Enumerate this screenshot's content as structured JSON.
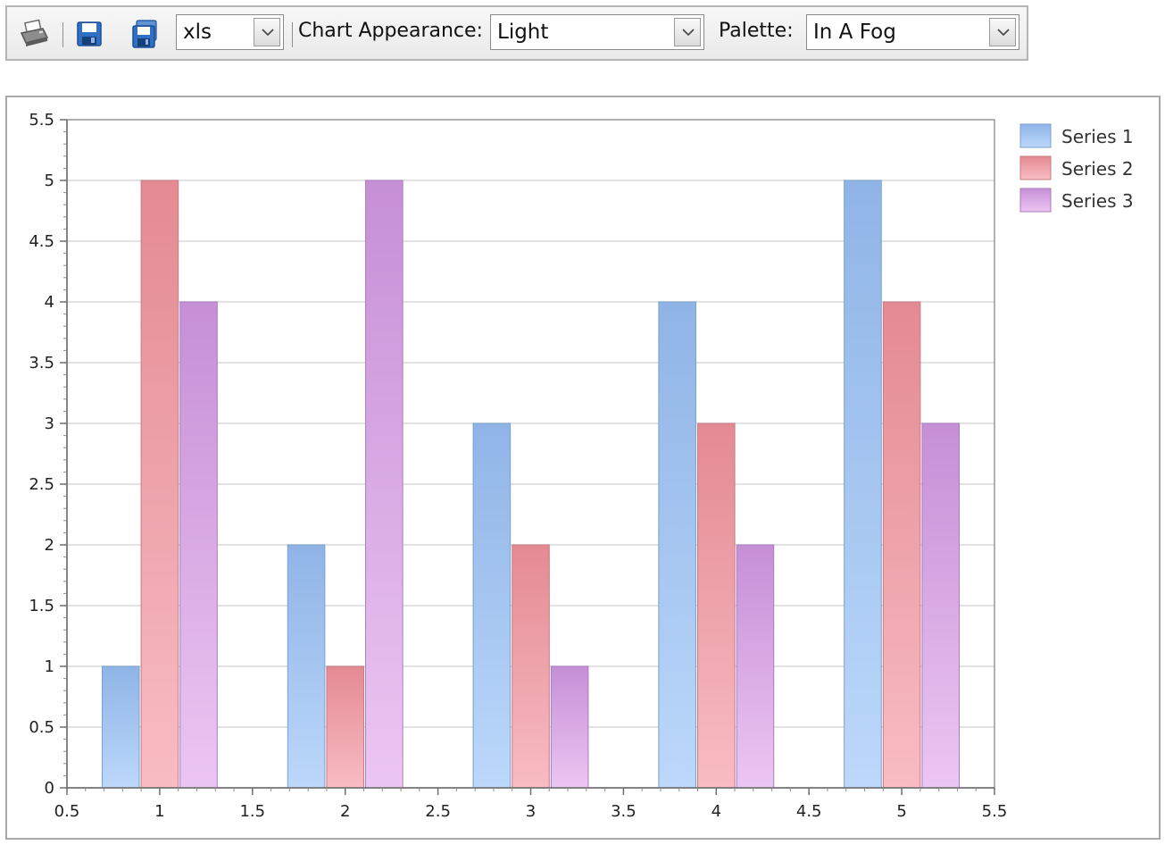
{
  "toolbar": {
    "export_format": "xls",
    "appearance_label": "Chart Appearance:",
    "appearance_value": "Light",
    "palette_label": "Palette:",
    "palette_value": "In A Fog",
    "icons": [
      "printer-icon",
      "save-icon",
      "save-as-icon",
      "chevron-down-icon"
    ]
  },
  "chart_data": {
    "type": "bar",
    "categories": [
      1,
      2,
      3,
      4,
      5
    ],
    "series": [
      {
        "name": "Series 1",
        "values": [
          1,
          2,
          3,
          4,
          5
        ],
        "color": "#8fb4e6",
        "color_light": "#bcd8fb",
        "stroke": "#7a9fd0"
      },
      {
        "name": "Series 2",
        "values": [
          5,
          1,
          2,
          3,
          4
        ],
        "color": "#e48a93",
        "color_light": "#f8bcc2",
        "stroke": "#c97a83"
      },
      {
        "name": "Series 3",
        "values": [
          4,
          5,
          1,
          2,
          3
        ],
        "color": "#c68fd6",
        "color_light": "#ecc6f2",
        "stroke": "#ad7bc0"
      }
    ],
    "x_ticks": [
      "0.5",
      "1",
      "1.5",
      "2",
      "2.5",
      "3",
      "3.5",
      "4",
      "4.5",
      "5",
      "5.5"
    ],
    "y_ticks": [
      "0",
      "0.5",
      "1",
      "1.5",
      "2",
      "2.5",
      "3",
      "3.5",
      "4",
      "4.5",
      "5",
      "5.5"
    ],
    "xlim": [
      0.5,
      5.5
    ],
    "ylim": [
      0,
      5.5
    ],
    "grid": true,
    "legend": "top-right"
  }
}
